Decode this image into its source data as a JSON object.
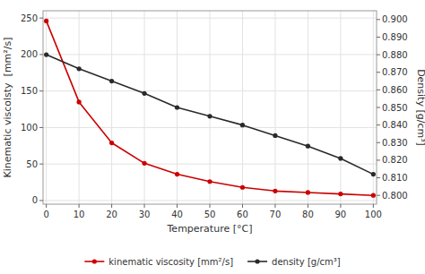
{
  "chart_data": {
    "type": "line",
    "x_label": "Temperature [°C]",
    "y_label": "Kinematic viscolsty  [mm²/s]",
    "y2_label": "Density [g/cm³]",
    "x": [
      0,
      10,
      20,
      30,
      40,
      50,
      60,
      70,
      80,
      90,
      100
    ],
    "series": [
      {
        "name": "kinematic viscosity [mm²/s]",
        "color": "#cc0000",
        "marker": "circle",
        "values": [
          246,
          135,
          79,
          51,
          36,
          26,
          18,
          13,
          11,
          9,
          7
        ]
      },
      {
        "name": "density [g/cm³]",
        "color": "#2a2a2a",
        "marker": "circle",
        "axis": "y2",
        "values": [
          0.88,
          0.872,
          0.865,
          0.858,
          0.85,
          0.845,
          0.84,
          0.834,
          0.828,
          0.821,
          0.812
        ]
      }
    ],
    "xlim": [
      -1,
      101
    ],
    "xticks": [
      0,
      10,
      20,
      30,
      40,
      50,
      60,
      70,
      80,
      90,
      100
    ],
    "ylim": [
      -5,
      260
    ],
    "yticks": [
      0,
      50,
      100,
      150,
      200,
      250
    ],
    "y2lim": [
      0.795,
      0.905
    ],
    "y2ticks": [
      {
        "value": 0.8,
        "label": "0.800"
      },
      {
        "value": 0.81,
        "label": "0.810"
      },
      {
        "value": 0.82,
        "label": "0.820"
      },
      {
        "value": 0.83,
        "label": "0.830"
      },
      {
        "value": 0.84,
        "label": "0.840"
      },
      {
        "value": 0.85,
        "label": "0.850"
      },
      {
        "value": 0.86,
        "label": "0.860"
      },
      {
        "value": 0.87,
        "label": "0.870"
      },
      {
        "value": 0.88,
        "label": "0.880"
      },
      {
        "value": 0.89,
        "label": "0.890"
      },
      {
        "value": 0.9,
        "label": "0.900"
      }
    ],
    "grid": true,
    "legend": "bottom"
  }
}
